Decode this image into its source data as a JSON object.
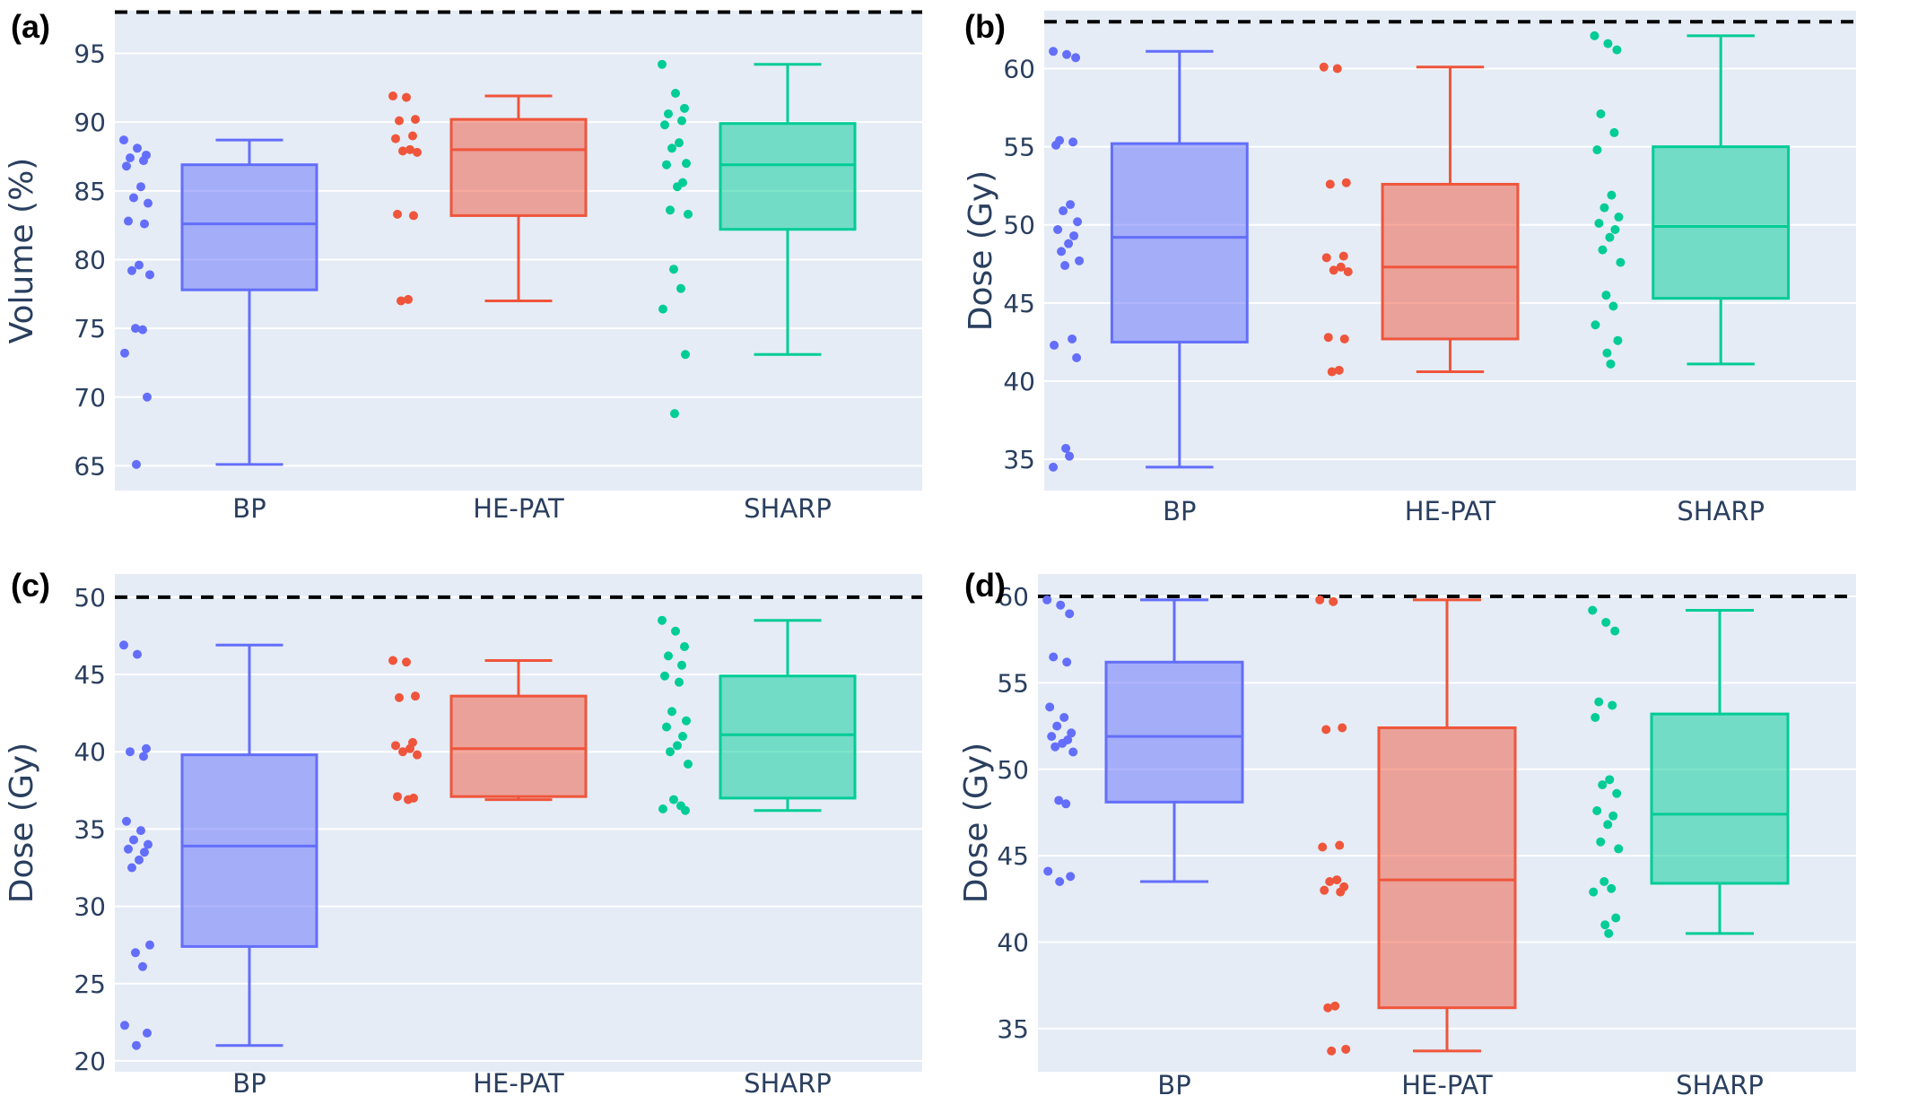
{
  "chart_data": [
    {
      "panel": "(a)",
      "type": "box",
      "ylabel": "Volume (%)",
      "yticks": [
        65,
        70,
        75,
        80,
        85,
        90,
        95
      ],
      "ylim": [
        63.2,
        98.1
      ],
      "reference_line": 98,
      "categories": [
        "BP",
        "HE-PAT",
        "SHARP"
      ],
      "boxes": [
        {
          "name": "BP",
          "color": "#636efa",
          "min": 65.1,
          "q1": 77.8,
          "median": 82.6,
          "q3": 86.9,
          "max": 88.7,
          "points": [
            88.7,
            88.1,
            87.6,
            87.4,
            87.2,
            86.8,
            85.3,
            84.5,
            84.1,
            82.8,
            82.6,
            79.6,
            79.2,
            78.9,
            75.0,
            74.9,
            73.2,
            70.0,
            65.1
          ]
        },
        {
          "name": "HE-PAT",
          "color": "#ef553b",
          "min": 77.0,
          "q1": 83.2,
          "median": 88.0,
          "q3": 90.2,
          "max": 91.9,
          "points": [
            91.9,
            91.8,
            90.2,
            90.1,
            89.0,
            88.8,
            88.0,
            87.9,
            87.8,
            83.3,
            83.2,
            77.1,
            77.0
          ]
        },
        {
          "name": "SHARP",
          "color": "#00cc96",
          "min": 73.1,
          "q1": 82.2,
          "median": 86.9,
          "q3": 89.9,
          "max": 94.2,
          "points": [
            94.2,
            92.1,
            91.0,
            90.6,
            90.1,
            89.8,
            88.5,
            88.1,
            87.0,
            86.9,
            85.6,
            85.3,
            83.6,
            83.3,
            79.3,
            77.9,
            76.4,
            73.1,
            68.8
          ]
        }
      ]
    },
    {
      "panel": "(b)",
      "type": "box",
      "ylabel": "Dose (Gy)",
      "yticks": [
        35,
        40,
        45,
        50,
        55,
        60
      ],
      "ylim": [
        33.0,
        63.7
      ],
      "reference_line": 63,
      "categories": [
        "BP",
        "HE-PAT",
        "SHARP"
      ],
      "boxes": [
        {
          "name": "BP",
          "color": "#636efa",
          "min": 34.5,
          "q1": 42.5,
          "median": 49.2,
          "q3": 55.2,
          "max": 61.1,
          "points": [
            61.1,
            60.9,
            60.7,
            55.4,
            55.3,
            55.1,
            51.3,
            50.9,
            50.2,
            49.7,
            49.3,
            48.8,
            48.3,
            47.7,
            47.4,
            42.7,
            42.3,
            41.5,
            35.7,
            35.2,
            34.5
          ]
        },
        {
          "name": "HE-PAT",
          "color": "#ef553b",
          "min": 40.6,
          "q1": 42.7,
          "median": 47.3,
          "q3": 52.6,
          "max": 60.1,
          "points": [
            60.1,
            60.0,
            52.7,
            52.6,
            48.0,
            47.9,
            47.3,
            47.1,
            47.0,
            42.8,
            42.7,
            40.7,
            40.6
          ]
        },
        {
          "name": "SHARP",
          "color": "#00cc96",
          "min": 41.1,
          "q1": 45.3,
          "median": 49.9,
          "q3": 55.0,
          "max": 62.1,
          "points": [
            62.1,
            61.6,
            61.2,
            57.1,
            55.9,
            54.8,
            51.9,
            51.1,
            50.5,
            50.1,
            49.7,
            49.2,
            48.4,
            47.6,
            45.5,
            44.8,
            43.6,
            42.6,
            41.8,
            41.1
          ]
        }
      ]
    },
    {
      "panel": "(c)",
      "type": "box",
      "ylabel": "Dose (Gy)",
      "yticks": [
        20,
        25,
        30,
        35,
        40,
        45,
        50
      ],
      "ylim": [
        19.3,
        51.5
      ],
      "reference_line": 50,
      "categories": [
        "BP",
        "HE-PAT",
        "SHARP"
      ],
      "boxes": [
        {
          "name": "BP",
          "color": "#636efa",
          "min": 21.0,
          "q1": 27.4,
          "median": 33.9,
          "q3": 39.8,
          "max": 46.9,
          "points": [
            46.9,
            46.3,
            40.2,
            40.0,
            39.7,
            35.5,
            34.9,
            34.3,
            34.0,
            33.7,
            33.5,
            33.0,
            32.5,
            27.5,
            27.0,
            26.1,
            22.3,
            21.8,
            21.0
          ]
        },
        {
          "name": "HE-PAT",
          "color": "#ef553b",
          "min": 36.9,
          "q1": 37.1,
          "median": 40.2,
          "q3": 43.6,
          "max": 45.9,
          "points": [
            45.9,
            45.8,
            43.6,
            43.5,
            40.6,
            40.4,
            40.2,
            40.0,
            39.8,
            37.1,
            37.0,
            36.9
          ]
        },
        {
          "name": "SHARP",
          "color": "#00cc96",
          "min": 36.2,
          "q1": 37.0,
          "median": 41.1,
          "q3": 44.9,
          "max": 48.5,
          "points": [
            48.5,
            47.8,
            46.8,
            46.2,
            45.6,
            44.9,
            44.5,
            42.6,
            42.0,
            41.6,
            41.0,
            40.4,
            40.0,
            39.2,
            36.9,
            36.5,
            36.3,
            36.2
          ]
        }
      ]
    },
    {
      "panel": "(d)",
      "type": "box",
      "ylabel": "Dose (Gy)",
      "yticks": [
        35,
        40,
        45,
        50,
        55,
        60
      ],
      "ylim": [
        32.5,
        61.3
      ],
      "reference_line": 60,
      "categories": [
        "BP",
        "HE-PAT",
        "SHARP"
      ],
      "boxes": [
        {
          "name": "BP",
          "color": "#636efa",
          "min": 43.5,
          "q1": 48.1,
          "median": 51.9,
          "q3": 56.2,
          "max": 59.8,
          "points": [
            59.8,
            59.5,
            59.0,
            56.5,
            56.2,
            53.6,
            53.0,
            52.5,
            52.1,
            51.9,
            51.7,
            51.5,
            51.3,
            51.0,
            48.2,
            48.0,
            44.1,
            43.8,
            43.5
          ]
        },
        {
          "name": "HE-PAT",
          "color": "#ef553b",
          "min": 33.7,
          "q1": 36.2,
          "median": 43.6,
          "q3": 52.4,
          "max": 59.8,
          "points": [
            59.8,
            59.7,
            52.4,
            52.3,
            45.6,
            45.5,
            43.6,
            43.5,
            43.2,
            43.0,
            42.9,
            36.3,
            36.2,
            33.8,
            33.7
          ]
        },
        {
          "name": "SHARP",
          "color": "#00cc96",
          "min": 40.5,
          "q1": 43.4,
          "median": 47.4,
          "q3": 53.2,
          "max": 59.2,
          "points": [
            59.2,
            58.5,
            58.0,
            53.9,
            53.7,
            53.0,
            49.4,
            49.1,
            48.6,
            47.6,
            47.3,
            46.8,
            45.8,
            45.4,
            43.5,
            43.1,
            42.9,
            41.4,
            41.0,
            40.5
          ]
        }
      ]
    }
  ]
}
